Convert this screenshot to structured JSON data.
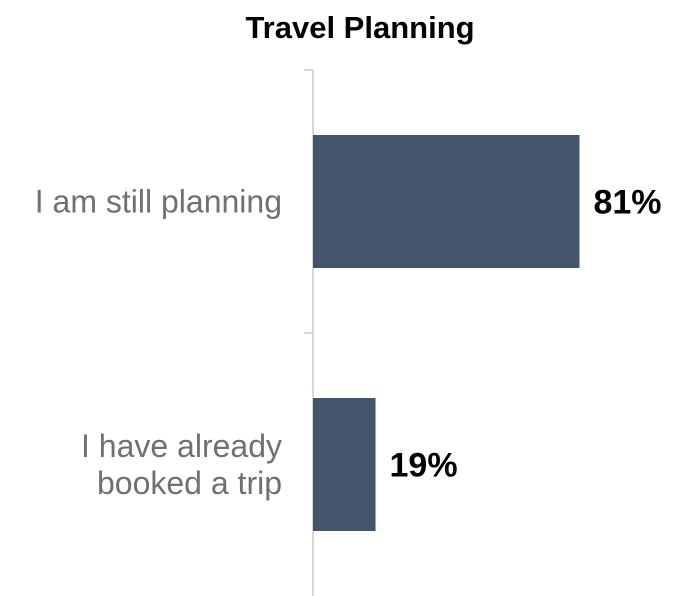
{
  "chart_data": {
    "type": "bar",
    "orientation": "horizontal",
    "title": "Travel Planning",
    "categories": [
      [
        "I am still planning"
      ],
      [
        "I have already",
        "booked a trip"
      ]
    ],
    "values": [
      81,
      19
    ],
    "value_labels": [
      "81%",
      "19%"
    ],
    "xlim": [
      0,
      100
    ],
    "grid": false,
    "colors": {
      "bar": "#44546a",
      "axis": "#d9d9d9"
    }
  }
}
